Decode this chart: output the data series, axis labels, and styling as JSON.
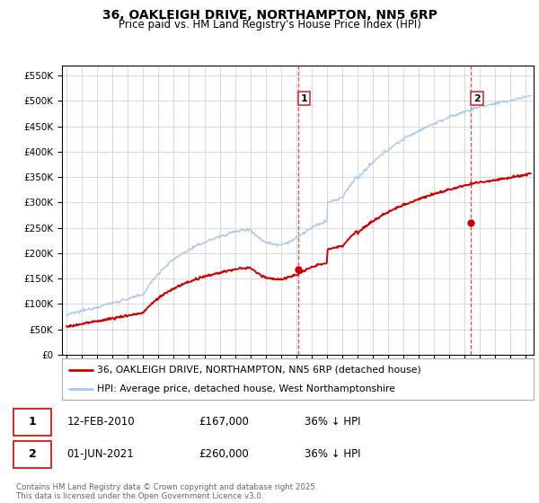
{
  "title1": "36, OAKLEIGH DRIVE, NORTHAMPTON, NN5 6RP",
  "title2": "Price paid vs. HM Land Registry's House Price Index (HPI)",
  "ylabel_ticks": [
    "£0",
    "£50K",
    "£100K",
    "£150K",
    "£200K",
    "£250K",
    "£300K",
    "£350K",
    "£400K",
    "£450K",
    "£500K",
    "£550K"
  ],
  "ytick_values": [
    0,
    50000,
    100000,
    150000,
    200000,
    250000,
    300000,
    350000,
    400000,
    450000,
    500000,
    550000
  ],
  "xlim": [
    1994.7,
    2025.5
  ],
  "ylim": [
    0,
    570000
  ],
  "marker1_x": 2010.12,
  "marker1_y": 167000,
  "marker2_x": 2021.42,
  "marker2_y": 260000,
  "sale1_date": "12-FEB-2010",
  "sale1_price": "£167,000",
  "sale1_hpi": "36% ↓ HPI",
  "sale2_date": "01-JUN-2021",
  "sale2_price": "£260,000",
  "sale2_hpi": "36% ↓ HPI",
  "legend1": "36, OAKLEIGH DRIVE, NORTHAMPTON, NN5 6RP (detached house)",
  "legend2": "HPI: Average price, detached house, West Northamptonshire",
  "footnote": "Contains HM Land Registry data © Crown copyright and database right 2025.\nThis data is licensed under the Open Government Licence v3.0.",
  "hpi_color": "#a8c8e8",
  "price_color": "#cc0000",
  "vline_color": "#cc0000",
  "background_color": "#ffffff",
  "grid_color": "#cccccc"
}
